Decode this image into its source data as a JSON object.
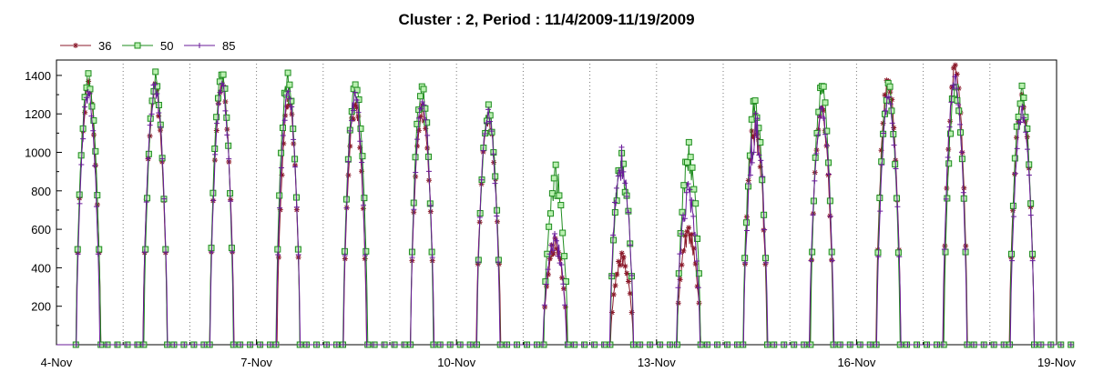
{
  "chart_data": {
    "type": "line",
    "title": "Cluster : 2, Period : 11/4/2009-11/19/2009",
    "xlabel": "",
    "ylabel": "",
    "x_ticks": [
      "4-Nov",
      "7-Nov",
      "10-Nov",
      "13-Nov",
      "16-Nov",
      "19-Nov"
    ],
    "xlim": [
      "2009-11-04",
      "2009-11-19"
    ],
    "ylim": [
      0,
      1480
    ],
    "y_ticks": [
      200,
      400,
      600,
      800,
      1000,
      1200,
      1400
    ],
    "grid": "dotted-vertical-daily",
    "legend_position": "top-left",
    "series": [
      {
        "name": "36",
        "color": "#8B1A2B",
        "marker": "asterisk",
        "daily_peaks": [
          1370,
          1370,
          1380,
          1300,
          1280,
          1250,
          1200,
          560,
          480,
          620,
          1200,
          1260,
          1410,
          1470,
          1300
        ]
      },
      {
        "name": "50",
        "color": "#1E8C1E",
        "marker": "square",
        "daily_peaks": [
          1420,
          1420,
          1440,
          1420,
          1390,
          1380,
          1260,
          940,
          1020,
          1060,
          1290,
          1380,
          1370,
          1380,
          1350
        ]
      },
      {
        "name": "85",
        "color": "#6A1B9A",
        "marker": "plus",
        "daily_peaks": [
          1350,
          1380,
          1380,
          1340,
          1330,
          1300,
          1230,
          590,
          1030,
          850,
          1220,
          1250,
          1310,
          1420,
          1250
        ]
      }
    ],
    "days": [
      "4-Nov",
      "5-Nov",
      "6-Nov",
      "7-Nov",
      "8-Nov",
      "9-Nov",
      "10-Nov",
      "11-Nov",
      "12-Nov",
      "13-Nov",
      "14-Nov",
      "15-Nov",
      "16-Nov",
      "17-Nov",
      "18-Nov"
    ]
  }
}
